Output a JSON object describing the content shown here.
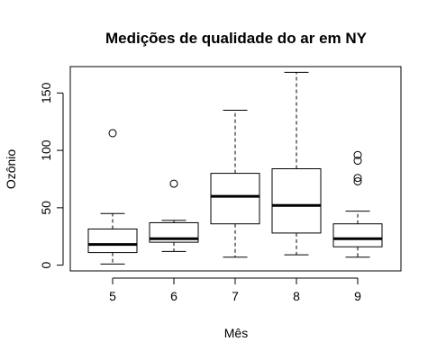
{
  "chart_data": {
    "type": "box",
    "title": "Medições de qualidade do ar em NY",
    "xlabel": "Mês",
    "ylabel": "Ozônio",
    "categories": [
      "5",
      "6",
      "7",
      "8",
      "9"
    ],
    "ylim": [
      -5,
      173
    ],
    "yticks": [
      0,
      50,
      100,
      150
    ],
    "grid": false,
    "boxes": [
      {
        "category": "5",
        "whisker_low": 1,
        "q1": 11,
        "median": 18,
        "q3": 31.5,
        "whisker_high": 45,
        "outliers": [
          115
        ]
      },
      {
        "category": "6",
        "whisker_low": 12,
        "q1": 20,
        "median": 23,
        "q3": 37,
        "whisker_high": 39,
        "outliers": [
          71
        ]
      },
      {
        "category": "7",
        "whisker_low": 7,
        "q1": 36,
        "median": 60,
        "q3": 80,
        "whisker_high": 135,
        "outliers": []
      },
      {
        "category": "8",
        "whisker_low": 9,
        "q1": 28,
        "median": 52,
        "q3": 84,
        "whisker_high": 168,
        "outliers": []
      },
      {
        "category": "9",
        "whisker_low": 7,
        "q1": 16,
        "median": 23,
        "q3": 36,
        "whisker_high": 47,
        "outliers": [
          73,
          76,
          91,
          96
        ]
      }
    ]
  }
}
